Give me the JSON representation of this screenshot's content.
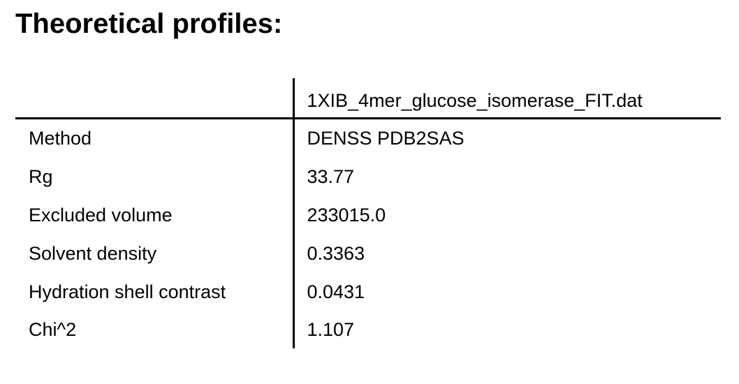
{
  "title": "Theoretical profiles:",
  "table": {
    "header": {
      "label_column": "",
      "file_column": "1XIB_4mer_glucose_isomerase_FIT.dat"
    },
    "rows": [
      {
        "label": "Method",
        "value": "DENSS PDB2SAS"
      },
      {
        "label": "Rg",
        "value": "33.77"
      },
      {
        "label": "Excluded volume",
        "value": "233015.0"
      },
      {
        "label": "Solvent density",
        "value": "0.3363"
      },
      {
        "label": "Hydration shell contrast",
        "value": "0.0431"
      },
      {
        "label": "Chi^2",
        "value": "1.107"
      }
    ]
  }
}
